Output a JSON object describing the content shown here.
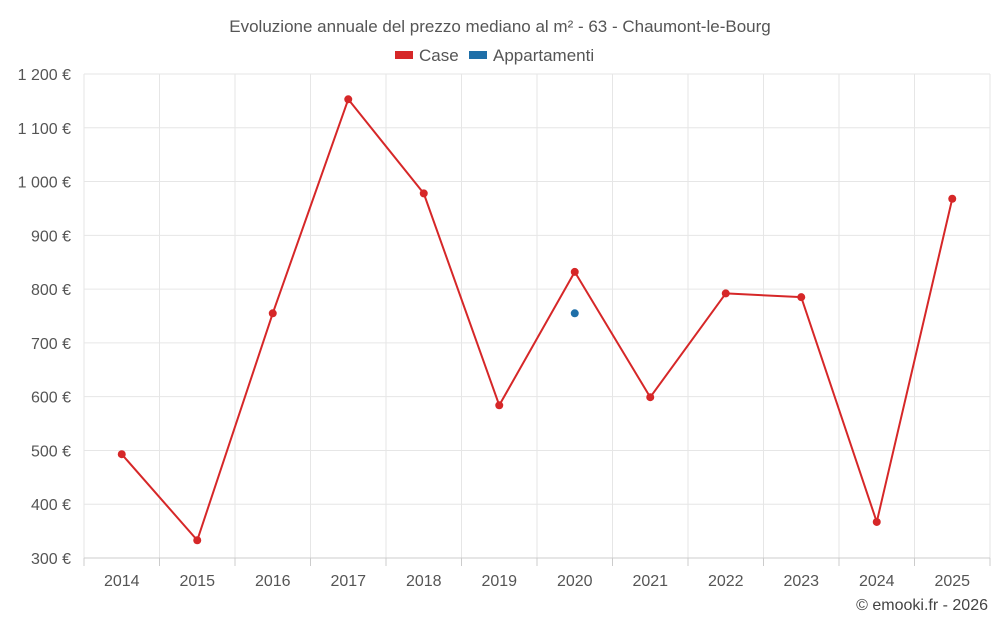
{
  "chart_data": {
    "type": "line",
    "title": "Evoluzione annuale del prezzo mediano al m² - 63 - Chaumont-le-Bourg",
    "categories": [
      "2014",
      "2015",
      "2016",
      "2017",
      "2018",
      "2019",
      "2020",
      "2021",
      "2022",
      "2023",
      "2024",
      "2025"
    ],
    "series": [
      {
        "name": "Case",
        "color": "#d62728",
        "values": [
          493,
          333,
          755,
          1153,
          978,
          584,
          832,
          599,
          792,
          785,
          367,
          968
        ]
      },
      {
        "name": "Appartamenti",
        "color": "#1f6fa8",
        "values": [
          null,
          null,
          null,
          null,
          null,
          null,
          755,
          null,
          null,
          null,
          null,
          null
        ]
      }
    ],
    "ylim": [
      300,
      1200
    ],
    "yticks": [
      300,
      400,
      500,
      600,
      700,
      800,
      900,
      1000,
      1100,
      1200
    ],
    "ytick_labels": [
      "300 €",
      "400 €",
      "500 €",
      "600 €",
      "700 €",
      "800 €",
      "900 €",
      "1 000 €",
      "1 100 €",
      "1 200 €"
    ],
    "legend_position": "top-center",
    "grid": true,
    "credit": "© emooki.fr - 2026"
  }
}
